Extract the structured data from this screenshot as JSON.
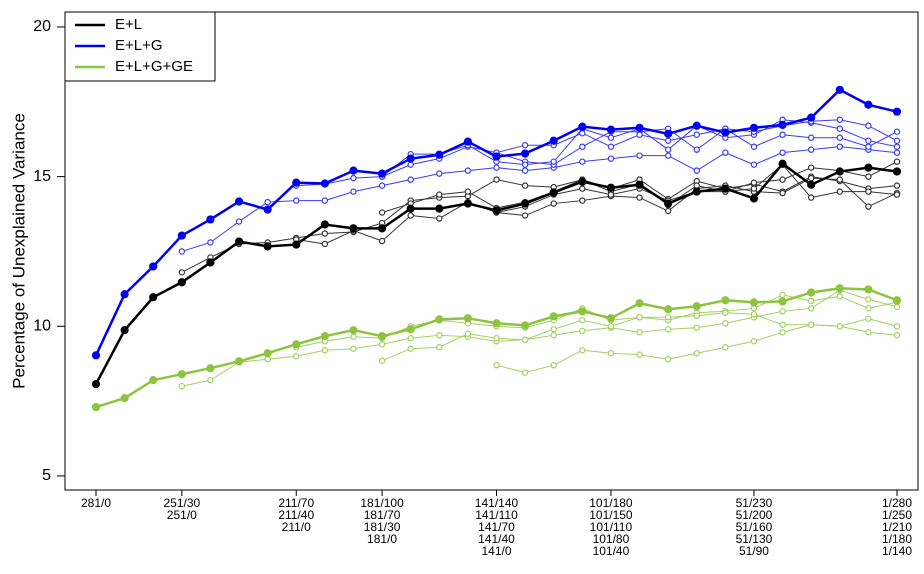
{
  "chart_data": {
    "type": "line",
    "ylabel": "Percentage of Unexplained Variance",
    "categories": [
      [
        "281/0"
      ],
      null,
      null,
      [
        "251/30",
        "251/0"
      ],
      null,
      null,
      null,
      [
        "211/70",
        "211/40",
        "211/0"
      ],
      null,
      null,
      [
        "181/100",
        "181/70",
        "181/30",
        "181/0"
      ],
      null,
      null,
      null,
      [
        "141/140",
        "141/110",
        "141/70",
        "141/40",
        "141/0"
      ],
      null,
      null,
      null,
      [
        "101/180",
        "101/150",
        "101/110",
        "101/80",
        "101/40"
      ],
      null,
      null,
      null,
      null,
      [
        "51/230",
        "51/200",
        "51/160",
        "51/130",
        "51/90"
      ],
      null,
      null,
      null,
      null,
      [
        "1/280",
        "1/250",
        "1/210",
        "1/180",
        "1/140"
      ]
    ],
    "ylim": [
      4.53,
      20.5
    ],
    "yticks": [
      5,
      10,
      15,
      20
    ],
    "legend": "top-left",
    "series": [
      {
        "color": "#a3cf63",
        "marker": "open",
        "linewidth": 1,
        "values": [
          null,
          null,
          null,
          8.0,
          8.2,
          8.8,
          8.9,
          9.0,
          9.2,
          9.25,
          9.4,
          9.6,
          9.7,
          9.65,
          9.5,
          9.55,
          9.7,
          9.85,
          9.95,
          9.8,
          9.9,
          9.95,
          10.1,
          10.3,
          10.5,
          10.6,
          11.2,
          10.9,
          10.65
        ]
      },
      {
        "color": "#a3cf63",
        "marker": "open",
        "linewidth": 1,
        "values": [
          null,
          null,
          null,
          null,
          null,
          null,
          null,
          9.3,
          9.5,
          9.65,
          9.6,
          10.0,
          10.2,
          10.1,
          10.0,
          9.95,
          10.2,
          10.6,
          10.2,
          10.3,
          10.2,
          10.45,
          10.5,
          10.6,
          11.05,
          10.85,
          11.0,
          10.6,
          10.8
        ]
      },
      {
        "color": "#a3cf63",
        "marker": "open",
        "linewidth": 1,
        "values": [
          null,
          null,
          null,
          null,
          null,
          null,
          null,
          null,
          null,
          null,
          8.85,
          9.25,
          9.3,
          9.75,
          9.6,
          9.55,
          9.9,
          10.2,
          10.0,
          10.3,
          10.3,
          10.35,
          10.45,
          10.4,
          10.05,
          10.05,
          10.0,
          10.25,
          10.0
        ]
      },
      {
        "color": "#a3cf63",
        "marker": "open",
        "linewidth": 1,
        "values": [
          null,
          null,
          null,
          null,
          null,
          null,
          null,
          null,
          null,
          null,
          null,
          null,
          null,
          null,
          8.7,
          8.45,
          8.7,
          9.2,
          9.1,
          9.05,
          8.9,
          9.1,
          9.3,
          9.5,
          9.8,
          10.05,
          10.0,
          9.8,
          9.7
        ]
      },
      {
        "name": "E+L+G+GE",
        "color": "#8dc43f",
        "marker": "filled",
        "linewidth": 2.5,
        "values": [
          7.3,
          7.6,
          8.2,
          8.4,
          8.6,
          8.83,
          9.1,
          9.4,
          9.67,
          9.87,
          9.67,
          9.9,
          10.23,
          10.27,
          10.1,
          10.03,
          10.33,
          10.5,
          10.27,
          10.77,
          10.57,
          10.67,
          10.87,
          10.8,
          10.83,
          11.13,
          11.27,
          11.23,
          10.87
        ]
      },
      {
        "color": "#333333",
        "marker": "open",
        "linewidth": 1,
        "values": [
          null,
          null,
          null,
          11.8,
          12.3,
          12.75,
          12.8,
          12.95,
          13.1,
          13.15,
          13.45,
          14.2,
          14.3,
          14.35,
          14.9,
          14.7,
          14.65,
          14.9,
          14.6,
          14.9,
          14.25,
          14.85,
          14.6,
          14.75,
          14.5,
          15.0,
          14.85,
          14.6,
          14.7
        ]
      },
      {
        "color": "#333333",
        "marker": "open",
        "linewidth": 1,
        "values": [
          null,
          null,
          null,
          null,
          null,
          null,
          null,
          12.9,
          12.75,
          13.2,
          12.85,
          13.7,
          13.6,
          14.15,
          13.8,
          13.7,
          14.1,
          14.2,
          14.35,
          14.3,
          13.85,
          14.6,
          14.7,
          14.5,
          14.45,
          14.95,
          14.9,
          14.0,
          14.45
        ]
      },
      {
        "color": "#333333",
        "marker": "open",
        "linewidth": 1,
        "values": [
          null,
          null,
          null,
          null,
          null,
          null,
          null,
          null,
          null,
          null,
          13.8,
          14.1,
          14.4,
          14.5,
          13.95,
          14.15,
          14.5,
          14.9,
          14.5,
          14.75,
          14.05,
          14.7,
          14.5,
          14.6,
          15.4,
          14.3,
          14.5,
          14.5,
          14.4
        ]
      },
      {
        "color": "#333333",
        "marker": "open",
        "linewidth": 1,
        "values": [
          null,
          null,
          null,
          null,
          null,
          null,
          null,
          null,
          null,
          null,
          null,
          null,
          null,
          null,
          13.8,
          14.0,
          14.4,
          14.6,
          14.4,
          14.6,
          14.2,
          14.5,
          14.5,
          14.8,
          14.9,
          15.3,
          15.2,
          15.0,
          15.5
        ]
      },
      {
        "name": "E+L",
        "color": "#000000",
        "marker": "filled",
        "linewidth": 2.5,
        "values": [
          8.07,
          9.87,
          10.97,
          11.47,
          12.13,
          12.83,
          12.67,
          12.73,
          13.4,
          13.27,
          13.27,
          13.93,
          13.93,
          14.1,
          13.87,
          14.1,
          14.47,
          14.83,
          14.63,
          14.73,
          14.1,
          14.5,
          14.6,
          14.27,
          15.43,
          14.73,
          15.17,
          15.3,
          15.17
        ]
      },
      {
        "color": "#3a3af5",
        "marker": "open",
        "linewidth": 1,
        "values": [
          null,
          null,
          null,
          12.5,
          12.8,
          13.5,
          14.15,
          14.2,
          14.2,
          14.5,
          14.7,
          14.9,
          15.1,
          15.2,
          15.3,
          15.2,
          15.3,
          15.5,
          15.6,
          15.7,
          15.7,
          15.2,
          15.8,
          15.4,
          15.8,
          15.9,
          16.0,
          15.9,
          15.8
        ]
      },
      {
        "color": "#3a3af5",
        "marker": "open",
        "linewidth": 1,
        "values": [
          null,
          null,
          null,
          null,
          null,
          null,
          null,
          14.7,
          14.75,
          14.95,
          15.0,
          15.4,
          15.6,
          16.0,
          15.8,
          15.5,
          15.4,
          16.0,
          16.5,
          16.5,
          16.6,
          15.9,
          16.6,
          16.0,
          16.4,
          16.3,
          16.3,
          16.0,
          16.5
        ]
      },
      {
        "color": "#3a3af5",
        "marker": "open",
        "linewidth": 1,
        "values": [
          null,
          null,
          null,
          null,
          null,
          null,
          null,
          null,
          null,
          null,
          15.0,
          15.75,
          15.75,
          16.05,
          15.5,
          15.4,
          15.5,
          16.6,
          16.3,
          16.6,
          15.9,
          16.7,
          16.3,
          16.4,
          16.9,
          16.8,
          16.6,
          16.2,
          16.0
        ]
      },
      {
        "color": "#3a3af5",
        "marker": "open",
        "linewidth": 1,
        "values": [
          null,
          null,
          null,
          null,
          null,
          null,
          null,
          null,
          null,
          null,
          null,
          null,
          null,
          null,
          15.8,
          16.05,
          16.05,
          16.45,
          16.0,
          16.4,
          16.2,
          16.4,
          16.6,
          16.5,
          16.7,
          16.85,
          16.9,
          16.7,
          16.2
        ]
      },
      {
        "name": "E+L+G",
        "color": "#0000f0",
        "marker": "filled",
        "linewidth": 2.5,
        "values": [
          9.03,
          11.07,
          12.0,
          13.03,
          13.57,
          14.17,
          13.9,
          14.8,
          14.77,
          15.2,
          15.1,
          15.6,
          15.73,
          16.17,
          15.67,
          15.77,
          16.2,
          16.67,
          16.57,
          16.63,
          16.43,
          16.7,
          16.47,
          16.63,
          16.73,
          16.97,
          17.9,
          17.4,
          17.17
        ]
      }
    ]
  }
}
